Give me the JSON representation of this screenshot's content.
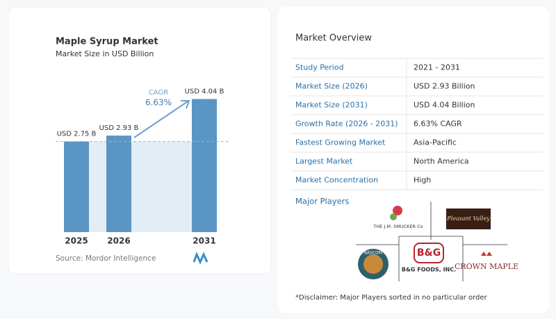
{
  "chart_data": {
    "type": "bar",
    "title": "Maple Syrup Market",
    "subtitle": "Market Size in USD Billion",
    "categories": [
      "2025",
      "2026",
      "2031"
    ],
    "values": [
      2.75,
      2.93,
      4.04
    ],
    "value_labels": [
      "USD 2.75 B",
      "USD 2.93 B",
      "USD 4.04 B"
    ],
    "color": "#5b95c3",
    "ylim": [
      0,
      5
    ],
    "annotations": [
      "CAGR",
      "6.63%"
    ],
    "source": "Source: Mordor Intelligence"
  },
  "overview": {
    "title": "Market Overview",
    "rows": [
      [
        "Study Period",
        "2021 - 2031"
      ],
      [
        "Market Size (2026)",
        "USD 2.93 Billion"
      ],
      [
        "Market Size (2031)",
        "USD 4.04 Billion"
      ],
      [
        "Growth Rate (2026 - 2031)",
        "6.63% CAGR"
      ],
      [
        "Fastest Growing Market",
        "Asia-Pacific"
      ],
      [
        "Largest Market",
        "North America"
      ],
      [
        "Market Concentration",
        "High"
      ]
    ]
  },
  "major_players": {
    "title": "Major Players",
    "logos": [
      "THE J.M. SMUCKER Co",
      "Pleasant Valley",
      "B&G FOODS, INC.",
      "BASCOM",
      "CROWN MAPLE"
    ]
  },
  "disclaimer": "*Disclaimer: Major Players sorted in no particular order"
}
